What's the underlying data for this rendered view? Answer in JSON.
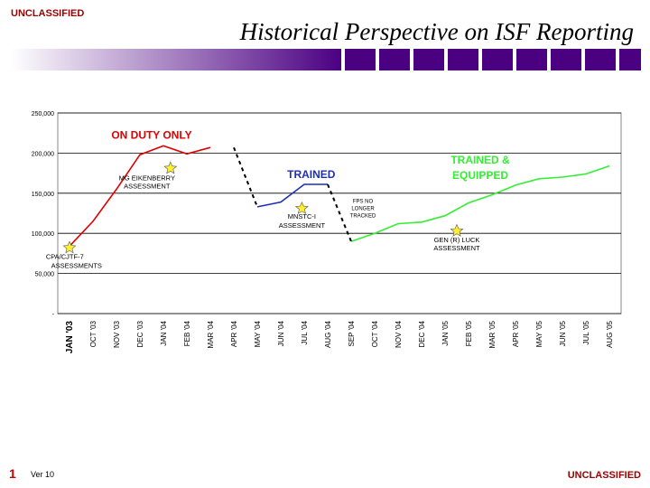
{
  "header": {
    "classification": "UNCLASSIFIED",
    "title": "Historical Perspective on ISF Reporting"
  },
  "footer": {
    "slide_number": "1",
    "version": "Ver 10",
    "classification": "UNCLASSIFIED"
  },
  "colors": {
    "bar_dark": "#4b0082",
    "bar_light": "#ffffff",
    "red": "#e00000",
    "blue": "#1f2fb5",
    "green": "#33ee33",
    "black": "#000000",
    "star": "#ffee33"
  },
  "chart_data": {
    "type": "line",
    "title": "",
    "xlabel": "",
    "ylabel": "",
    "ylim": [
      0,
      250000
    ],
    "yticks": [
      0,
      50000,
      100000,
      150000,
      200000,
      250000
    ],
    "ytick_labels": [
      "-",
      "50,000",
      "100,000",
      "150,000",
      "200,000",
      "250,000"
    ],
    "grid": true,
    "categories": [
      "JAN '03",
      "OCT '03",
      "NOV '03",
      "DEC '03",
      "JAN '04",
      "FEB '04",
      "MAR '04",
      "APR '04",
      "MAY '04",
      "JUN '04",
      "JUL '04",
      "AUG '04",
      "SEP '04",
      "OCT '04",
      "NOV '04",
      "DEC '04",
      "JAN '05",
      "FEB '05",
      "MAR '05",
      "APR '05",
      "MAY '05",
      "JUN '05",
      "JUL '05",
      "AUG '05"
    ],
    "series": [
      {
        "name": "ON DUTY ONLY",
        "color": "red",
        "style": "solid",
        "values": [
          84000,
          115000,
          155000,
          198000,
          209000,
          199000,
          207000,
          null,
          null,
          null,
          null,
          null,
          null,
          null,
          null,
          null,
          null,
          null,
          null,
          null,
          null,
          null,
          null,
          null
        ]
      },
      {
        "name": "TRAINED",
        "color": "blue",
        "style": "solid",
        "values": [
          null,
          null,
          null,
          null,
          null,
          null,
          null,
          null,
          133000,
          139000,
          161000,
          161000,
          null,
          null,
          null,
          null,
          null,
          null,
          null,
          null,
          null,
          null,
          null,
          null
        ]
      },
      {
        "name": "TRAINED & EQUIPPED",
        "color": "green",
        "style": "solid",
        "values": [
          null,
          null,
          null,
          null,
          null,
          null,
          null,
          null,
          null,
          null,
          null,
          null,
          90000,
          100000,
          112000,
          114000,
          122000,
          138000,
          148000,
          160000,
          168000,
          170000,
          174000,
          184000
        ]
      },
      {
        "name": "",
        "color": "black",
        "style": "dashed",
        "values": [
          null,
          null,
          null,
          null,
          null,
          null,
          null,
          207000,
          133000,
          null,
          null,
          null,
          null,
          null,
          null,
          null,
          null,
          null,
          null,
          null,
          null,
          null,
          null,
          null
        ]
      },
      {
        "name": "",
        "color": "black",
        "style": "dashed",
        "values": [
          null,
          null,
          null,
          null,
          null,
          null,
          null,
          null,
          null,
          null,
          null,
          161000,
          90000,
          null,
          null,
          null,
          null,
          null,
          null,
          null,
          null,
          null,
          null,
          null
        ]
      }
    ],
    "annotations": [
      {
        "text": "ON DUTY ONLY",
        "type": "series_label",
        "color": "red",
        "x_index": 3.5,
        "y": 218000
      },
      {
        "text": "TRAINED",
        "type": "series_label",
        "color": "blue",
        "x_index": 10.3,
        "y": 169000
      },
      {
        "text": "TRAINED &",
        "type": "series_label",
        "color": "green",
        "x_index": 17.5,
        "y": 187000
      },
      {
        "text": "EQUIPPED",
        "type": "series_label",
        "color": "green",
        "x_index": 17.5,
        "y": 168000
      },
      {
        "text": "CPA/CJTF-7",
        "type": "note",
        "x_index": -0.2,
        "y": 68000
      },
      {
        "text": "ASSESSMENTS",
        "type": "note",
        "x_index": 0.3,
        "y": 57000
      },
      {
        "text": "MG EIKENBERRY",
        "type": "note",
        "x_index": 3.3,
        "y": 166000
      },
      {
        "text": "ASSESSMENT",
        "type": "note",
        "x_index": 3.3,
        "y": 156000
      },
      {
        "text": "MNSTC-I",
        "type": "note",
        "x_index": 9.9,
        "y": 118000
      },
      {
        "text": "ASSESSMENT",
        "type": "note",
        "x_index": 9.9,
        "y": 107000
      },
      {
        "text": "FPS NO",
        "type": "note_small",
        "x_index": 12.5,
        "y": 138000
      },
      {
        "text": "LONGER",
        "type": "note_small",
        "x_index": 12.5,
        "y": 129000
      },
      {
        "text": "TRACKED",
        "type": "note_small",
        "x_index": 12.5,
        "y": 120000
      },
      {
        "text": "GEN (R) LUCK",
        "type": "note",
        "x_index": 16.5,
        "y": 89000
      },
      {
        "text": "ASSESSMENT",
        "type": "note",
        "x_index": 16.5,
        "y": 79000
      }
    ],
    "markers": [
      {
        "label": "star",
        "x_index": 0,
        "y": 82000
      },
      {
        "label": "star",
        "x_index": 4.3,
        "y": 181000
      },
      {
        "label": "star",
        "x_index": 9.9,
        "y": 131000
      },
      {
        "label": "star",
        "x_index": 16.5,
        "y": 103000
      }
    ]
  }
}
